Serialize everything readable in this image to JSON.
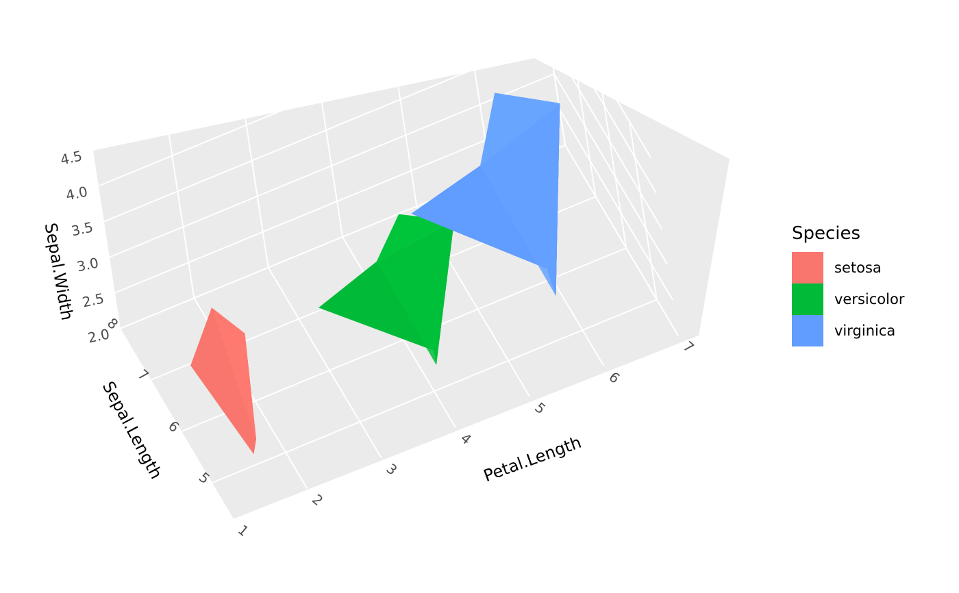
{
  "chart_data": {
    "type": "3d-hull",
    "x_axis": {
      "label": "Petal.Length",
      "ticks": [
        "1",
        "2",
        "3",
        "4",
        "5",
        "6",
        "7"
      ],
      "range": [
        1,
        7
      ]
    },
    "y_axis": {
      "label": "Sepal.Length",
      "ticks": [
        "5",
        "6",
        "7",
        "8"
      ],
      "range": [
        4.3,
        8
      ]
    },
    "z_axis": {
      "label": "Sepal.Width",
      "ticks": [
        "2.0",
        "2.5",
        "3.0",
        "3.5",
        "4.0",
        "4.5"
      ],
      "range": [
        2,
        4.5
      ]
    },
    "legend": {
      "title": "Species",
      "position": "right",
      "items": [
        {
          "label": "setosa",
          "color": "#F8766D"
        },
        {
          "label": "versicolor",
          "color": "#00BA38"
        },
        {
          "label": "virginica",
          "color": "#619CFF"
        }
      ]
    },
    "series": [
      {
        "name": "setosa",
        "petal_length": [
          1.0,
          1.9
        ],
        "sepal_length": [
          4.3,
          5.8
        ],
        "sepal_width": [
          2.3,
          4.4
        ]
      },
      {
        "name": "versicolor",
        "petal_length": [
          3.0,
          5.1
        ],
        "sepal_length": [
          4.9,
          7.0
        ],
        "sepal_width": [
          2.0,
          3.4
        ]
      },
      {
        "name": "virginica",
        "petal_length": [
          4.5,
          6.9
        ],
        "sepal_length": [
          4.9,
          7.9
        ],
        "sepal_width": [
          2.2,
          3.8
        ]
      }
    ],
    "background": "#ebebeb",
    "grid": true
  }
}
